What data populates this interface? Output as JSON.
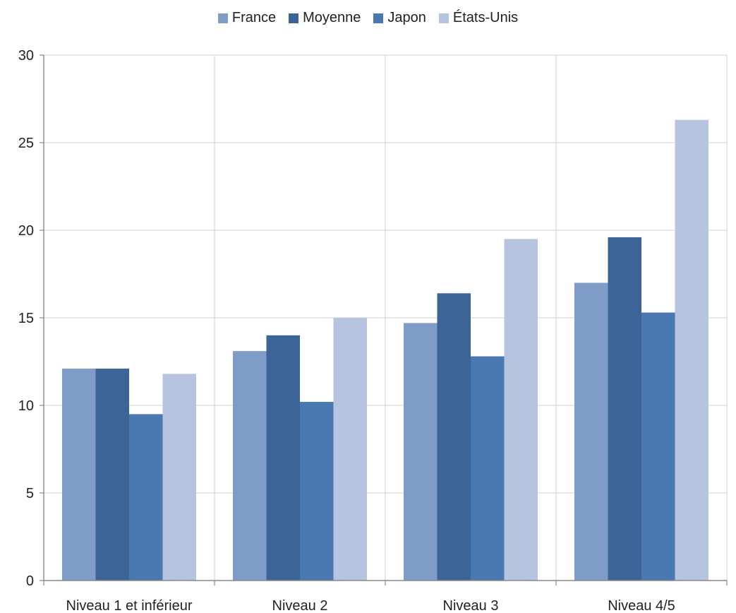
{
  "chart_data": {
    "type": "bar",
    "categories": [
      "Niveau 1 et inférieur",
      "Niveau 2",
      "Niveau 3",
      "Niveau 4/5"
    ],
    "series": [
      {
        "name": "France",
        "color": "#7f9cc8",
        "values": [
          12.1,
          13.1,
          14.7,
          17.0
        ]
      },
      {
        "name": "Moyenne",
        "color": "#3d6496",
        "values": [
          12.1,
          14.0,
          16.4,
          19.6
        ]
      },
      {
        "name": "Japon",
        "color": "#4a78b0",
        "values": [
          9.5,
          10.2,
          12.8,
          15.3
        ]
      },
      {
        "name": "États-Unis",
        "color": "#b7c4df",
        "values": [
          11.8,
          15.0,
          19.5,
          26.3
        ]
      }
    ],
    "ylim": [
      0,
      30
    ],
    "yticks": [
      0,
      5,
      10,
      15,
      20,
      25,
      30
    ],
    "grid": true,
    "legend_position": "top-center",
    "title": "",
    "xlabel": "",
    "ylabel": ""
  }
}
